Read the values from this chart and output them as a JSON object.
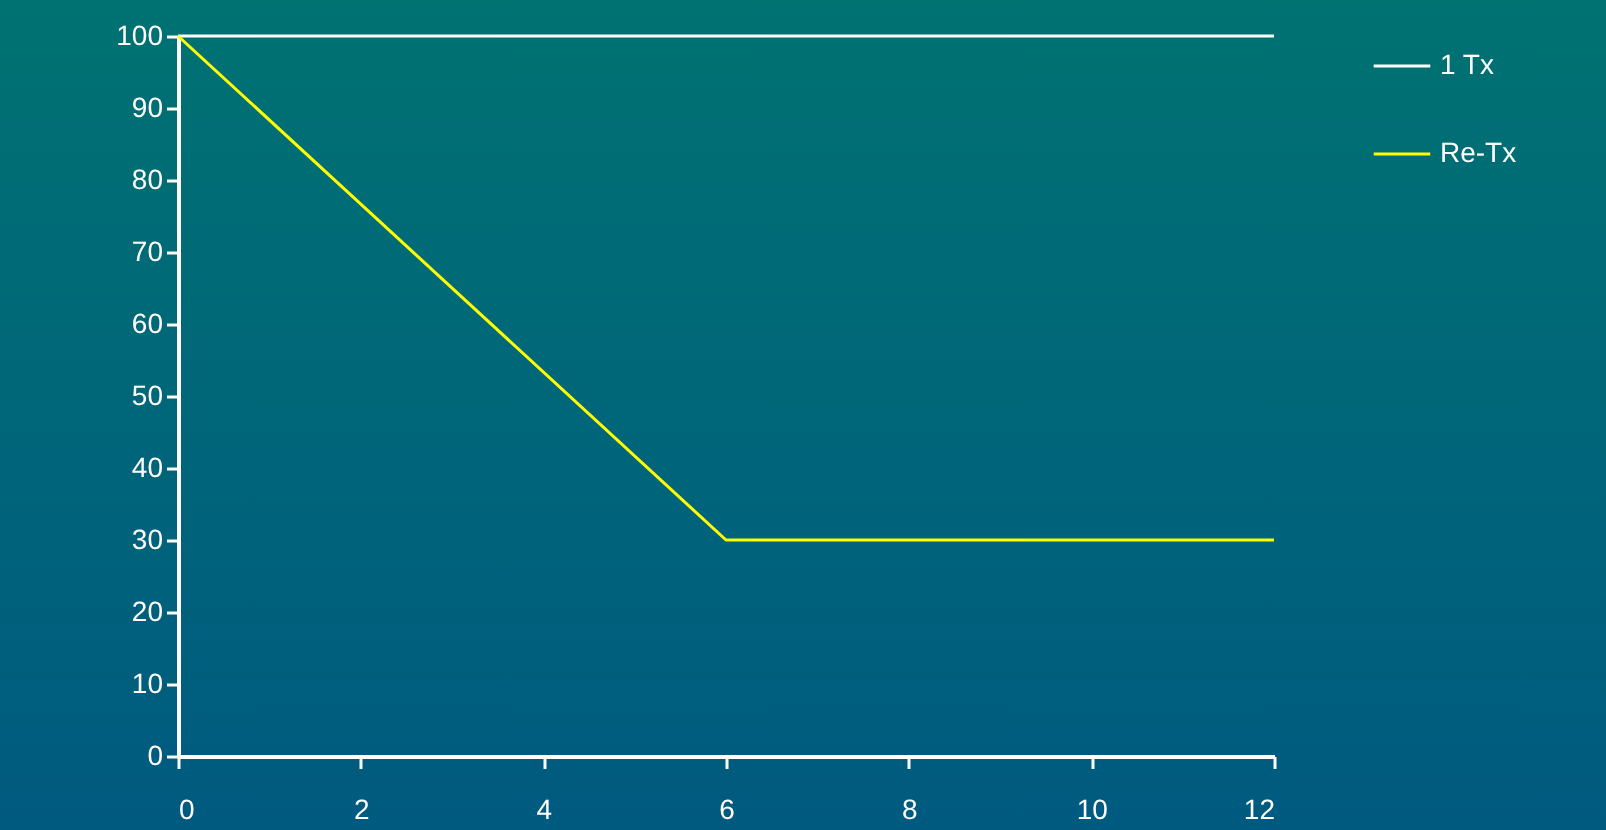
{
  "chart_data": {
    "type": "line",
    "x": [
      0,
      6,
      12
    ],
    "series": [
      {
        "name": "1 Tx",
        "color": "#ffffff",
        "values": [
          100,
          100,
          100
        ]
      },
      {
        "name": "Re-Tx",
        "color": "#ffff00",
        "values": [
          100,
          30,
          30
        ]
      }
    ],
    "xlim": [
      0,
      12
    ],
    "xticks": [
      0,
      2,
      4,
      6,
      8,
      10,
      12
    ],
    "ylim": [
      0,
      100
    ],
    "yticks": [
      0,
      10,
      20,
      30,
      40,
      50,
      60,
      70,
      80,
      90,
      100
    ],
    "grid": false,
    "legend": "right",
    "marker": "none",
    "line_style": "solid"
  }
}
